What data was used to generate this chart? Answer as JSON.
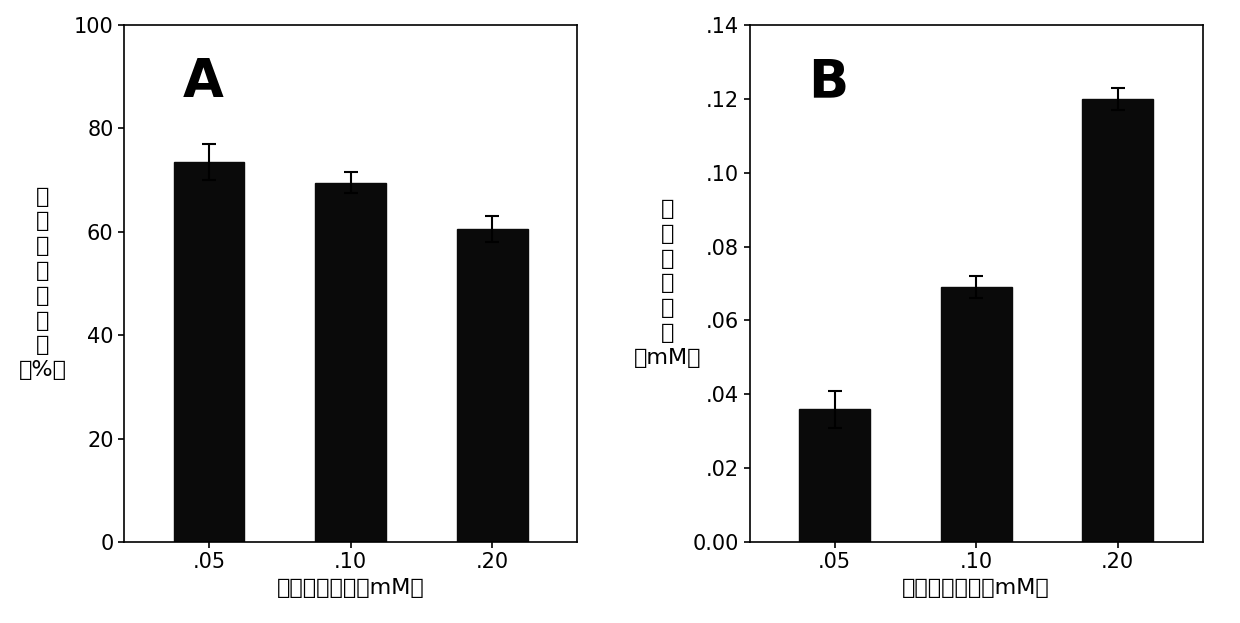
{
  "panel_A": {
    "label": "A",
    "categories": [
      ".05",
      ".10",
      ".20"
    ],
    "values": [
      73.5,
      69.5,
      60.5
    ],
    "errors": [
      3.5,
      2.0,
      2.5
    ],
    "ylabel_chars": [
      "纳",
      "米",
      "碲",
      "转",
      "化",
      "效",
      "率",
      "（%）"
    ],
    "xlabel": "亚碲酸钾浓度（mM）",
    "ylim": [
      0,
      100
    ],
    "yticks": [
      0,
      20,
      40,
      60,
      80,
      100
    ],
    "ytick_labels": [
      "0",
      "20",
      "40",
      "60",
      "80",
      "100"
    ]
  },
  "panel_B": {
    "label": "B",
    "categories": [
      ".05",
      ".10",
      ".20"
    ],
    "values": [
      0.036,
      0.069,
      0.12
    ],
    "errors": [
      0.005,
      0.003,
      0.003
    ],
    "ylabel_chars": [
      "纳",
      "米",
      "碲",
      "合",
      "成",
      "量",
      "（mM）"
    ],
    "xlabel": "亚碲酸钾浓度（mM）",
    "ylim": [
      0,
      0.14
    ],
    "yticks": [
      0.0,
      0.02,
      0.04,
      0.06,
      0.08,
      0.1,
      0.12,
      0.14
    ],
    "ytick_labels": [
      "0.00",
      ".02",
      ".04",
      ".06",
      ".08",
      ".10",
      ".12",
      ".14"
    ]
  },
  "bar_color": "#0a0a0a",
  "bar_width": 0.5,
  "bg_color": "#ffffff",
  "panel_label_fontsize": 38,
  "tick_fontsize": 15,
  "axis_label_fontsize": 16,
  "ylabel_char_fontsize": 16,
  "capsize": 5,
  "error_linewidth": 1.5,
  "error_capthick": 1.5
}
